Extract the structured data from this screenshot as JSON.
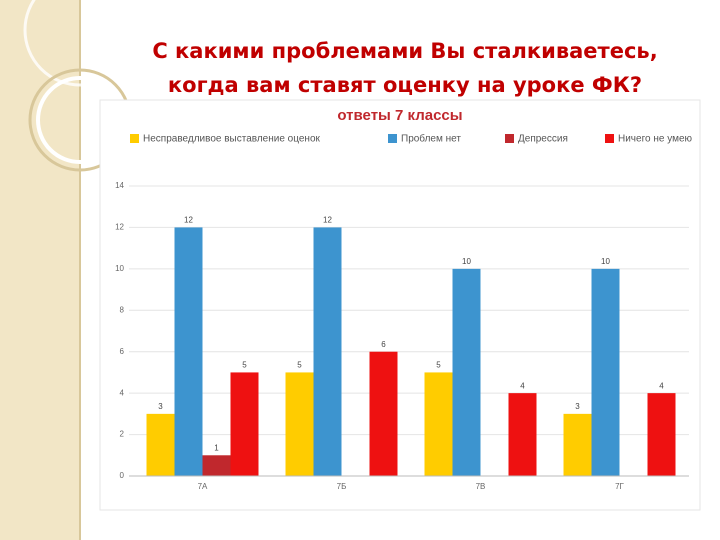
{
  "title": [
    "С какими проблемами Вы сталкиваетесь,",
    "когда вам ставят оценку на уроке ФК?"
  ],
  "chart_data": {
    "type": "bar",
    "title": "ответы 7 классы",
    "categories": [
      "7А",
      "7Б",
      "7В",
      "7Г"
    ],
    "series": [
      {
        "name": "Несправедливое выставление оценок",
        "color": "#ffcc00",
        "values": [
          3,
          5,
          5,
          3
        ]
      },
      {
        "name": "Проблем нет",
        "color": "#3d94cf",
        "values": [
          12,
          12,
          10,
          10
        ]
      },
      {
        "name": "Депрессия",
        "color": "#c0282d",
        "values": [
          1,
          null,
          null,
          null
        ]
      },
      {
        "name": "Ничего не умею",
        "color": "#ee1111",
        "values": [
          5,
          6,
          4,
          4
        ]
      }
    ],
    "ylim": [
      0,
      14
    ],
    "yticks": [
      0,
      2,
      4,
      6,
      8,
      10,
      12,
      14
    ],
    "grid": true,
    "legend": "top"
  }
}
